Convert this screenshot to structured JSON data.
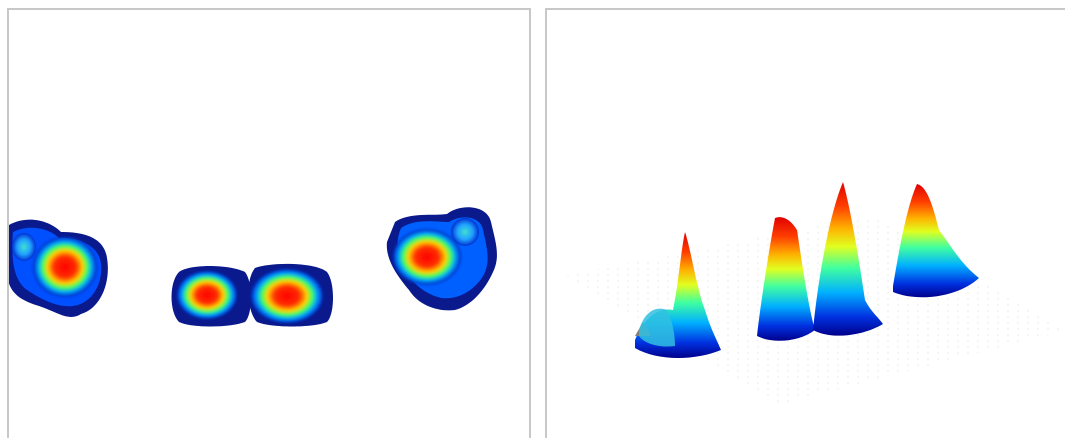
{
  "figure": {
    "colormap": [
      "#00008b",
      "#0040ff",
      "#00c0ff",
      "#40ff80",
      "#ffff00",
      "#ff8000",
      "#ff0000"
    ],
    "left_panel": {
      "view": "2d-contour-heatmap",
      "blob_count": 5
    },
    "right_panel": {
      "view": "3d-surface",
      "peak_count": 5
    }
  }
}
